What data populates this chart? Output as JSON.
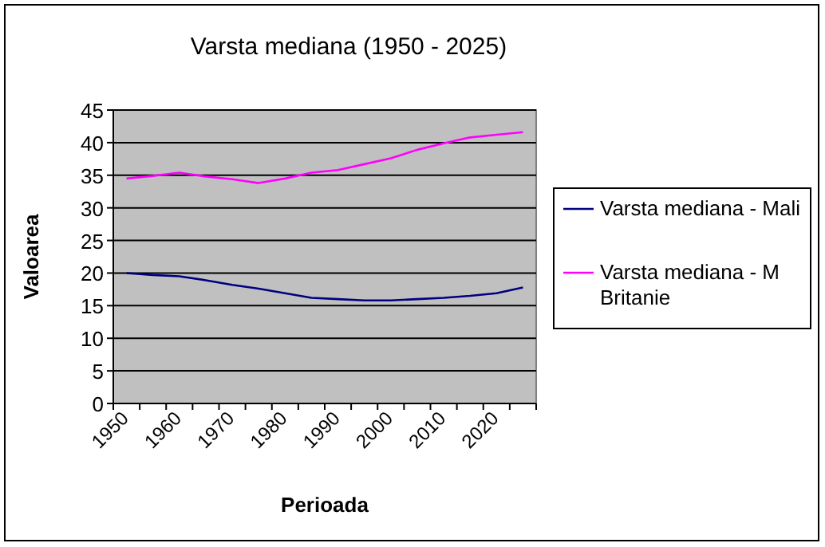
{
  "chart_data": {
    "type": "line",
    "title": "Varsta mediana (1950 - 2025)",
    "xlabel": "Perioada",
    "ylabel": "Valoarea",
    "categories": [
      "1950",
      null,
      "1960",
      null,
      "1970",
      null,
      "1980",
      null,
      "1990",
      null,
      "2000",
      null,
      "2010",
      null,
      "2020",
      null
    ],
    "series": [
      {
        "name": "Varsta mediana - Mali",
        "color": "#000080",
        "values": [
          20.0,
          19.7,
          19.5,
          18.9,
          18.2,
          17.6,
          16.9,
          16.2,
          16.0,
          15.8,
          15.8,
          16.0,
          16.2,
          16.5,
          16.9,
          17.8
        ]
      },
      {
        "name": "Varsta mediana - M Britanie",
        "color": "#ff00ff",
        "values": [
          34.5,
          34.9,
          35.4,
          34.8,
          34.4,
          33.8,
          34.5,
          35.4,
          35.8,
          36.7,
          37.6,
          38.9,
          39.9,
          40.8,
          41.2,
          41.6
        ]
      }
    ],
    "ylim": [
      0,
      45
    ],
    "yticks": [
      0,
      5,
      10,
      15,
      20,
      25,
      30,
      35,
      40,
      45
    ],
    "grid": "y",
    "legend": "right",
    "marker": "none",
    "line_style": "solid"
  }
}
